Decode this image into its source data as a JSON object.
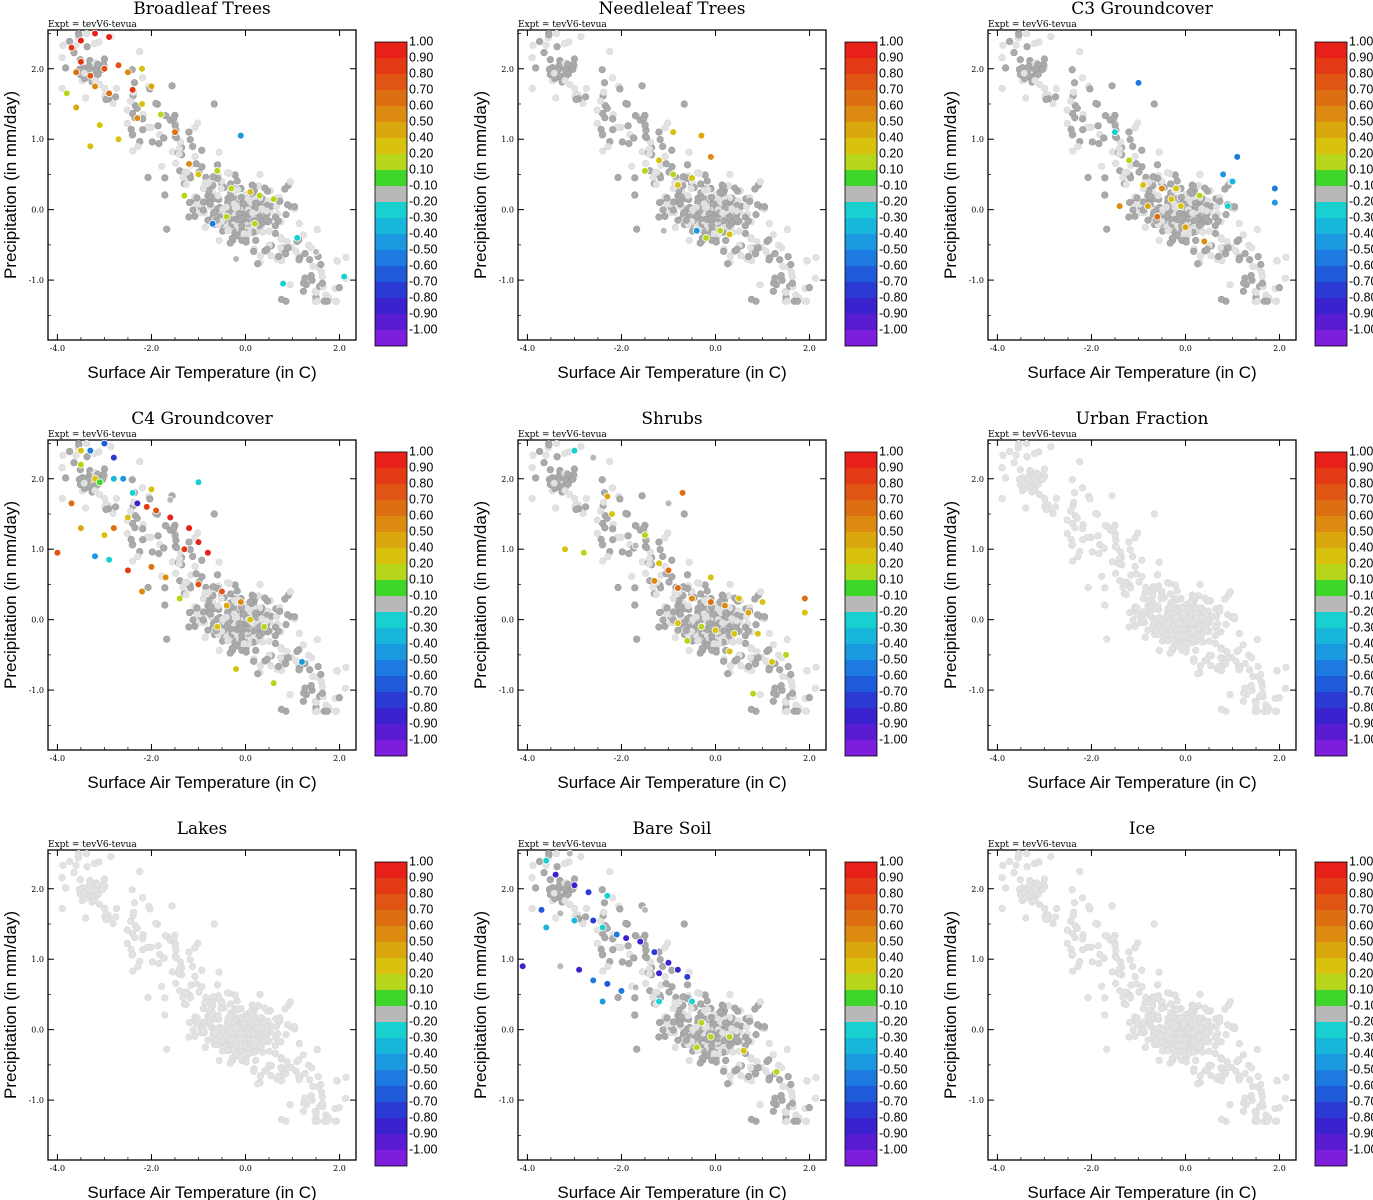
{
  "figure": {
    "xlabel": "Surface Air Temperature (in C)",
    "ylabel": "Precipitation (in mm/day)",
    "experiment": "Expt = tevV6-tevua",
    "xticks": [
      -4.0,
      -2.0,
      0.0,
      2.0
    ],
    "xtick_labels": [
      "-4.0",
      "-2.0",
      "0.0",
      "2.0"
    ],
    "yticks": [
      -1.0,
      0.0,
      1.0,
      2.0
    ],
    "ytick_labels": [
      "-1.0",
      "0.0",
      "1.0",
      "2.0"
    ],
    "xlim": [
      -4.2,
      2.35
    ],
    "ylim": [
      -1.85,
      2.55
    ]
  },
  "colorbar": {
    "labels": [
      "1.00",
      "0.90",
      "0.80",
      "0.70",
      "0.60",
      "0.50",
      "0.40",
      "0.20",
      "0.10",
      "-0.10",
      "-0.20",
      "-0.30",
      "-0.40",
      "-0.50",
      "-0.60",
      "-0.70",
      "-0.80",
      "-0.90",
      "-1.00"
    ],
    "colors": [
      "#e8201a",
      "#e33a15",
      "#e05514",
      "#de6e12",
      "#dd8a10",
      "#dba70e",
      "#d8c20d",
      "#b7d61b",
      "#3fd62a",
      "#b8b8b8",
      "#19d0d0",
      "#19b6dc",
      "#1a98e0",
      "#1c7ae0",
      "#1f5bd8",
      "#2a3ad3",
      "#3b22cf",
      "#5a1cd3",
      "#7c1edb"
    ]
  },
  "chart_data": [
    {
      "type": "scatter",
      "title": "Broadleaf Trees",
      "subtitle": "Expt = tevV6-tevua",
      "xlabel": "Surface Air Temperature (in C)",
      "ylabel": "Precipitation (in mm/day)",
      "xlim": [
        -4.2,
        2.35
      ],
      "ylim": [
        -1.85,
        2.55
      ],
      "colorbar_range": [
        -1.0,
        1.0
      ],
      "colored_points": [
        [
          -3.7,
          2.3,
          0.8
        ],
        [
          -3.5,
          2.4,
          0.9
        ],
        [
          -3.2,
          2.5,
          0.9
        ],
        [
          -2.9,
          2.45,
          0.9
        ],
        [
          -3.5,
          2.1,
          0.8
        ],
        [
          -3.6,
          1.95,
          0.6
        ],
        [
          -3.3,
          1.9,
          0.7
        ],
        [
          -3.0,
          2.0,
          0.7
        ],
        [
          -2.7,
          2.05,
          0.7
        ],
        [
          -2.5,
          1.95,
          0.5
        ],
        [
          -2.2,
          2.0,
          0.3
        ],
        [
          -3.2,
          1.75,
          0.5
        ],
        [
          -2.9,
          1.65,
          0.6
        ],
        [
          -2.4,
          1.7,
          0.8
        ],
        [
          -2.0,
          1.75,
          0.4
        ],
        [
          -2.2,
          1.5,
          0.3
        ],
        [
          -1.8,
          1.35,
          0.1
        ],
        [
          -3.8,
          1.65,
          0.1
        ],
        [
          -3.6,
          1.45,
          0.4
        ],
        [
          -3.1,
          1.2,
          0.2
        ],
        [
          -2.7,
          1.0,
          0.2
        ],
        [
          -3.3,
          0.9,
          0.2
        ],
        [
          -2.3,
          1.3,
          0.5
        ],
        [
          -1.5,
          1.1,
          0.6
        ],
        [
          -1.2,
          0.65,
          0.5
        ],
        [
          -1.0,
          0.5,
          0.3
        ],
        [
          -0.6,
          0.55,
          0.1
        ],
        [
          -0.3,
          0.3,
          0.1
        ],
        [
          0.1,
          0.25,
          0.2
        ],
        [
          0.3,
          0.2,
          0.1
        ],
        [
          0.6,
          0.15,
          0.1
        ],
        [
          -1.3,
          0.2,
          0.1
        ],
        [
          -0.4,
          -0.1,
          0.1
        ],
        [
          0.2,
          -0.2,
          0.1
        ],
        [
          -0.1,
          1.05,
          -0.5
        ],
        [
          -0.7,
          -0.2,
          -0.6
        ],
        [
          1.1,
          -0.4,
          -0.3
        ],
        [
          1.5,
          -0.6,
          -0.2
        ],
        [
          2.1,
          -0.95,
          -0.3
        ],
        [
          -0.2,
          -0.7,
          -0.2
        ],
        [
          0.8,
          -1.05,
          -0.3
        ]
      ],
      "grey_extent": {
        "x": [
          -4.2,
          2.3
        ],
        "y": [
          -1.3,
          2.5
        ]
      }
    },
    {
      "type": "scatter",
      "title": "Needleleaf Trees",
      "subtitle": "Expt = tevV6-tevua",
      "xlabel": "Surface Air Temperature (in C)",
      "ylabel": "Precipitation (in mm/day)",
      "xlim": [
        -4.2,
        2.35
      ],
      "ylim": [
        -1.85,
        2.55
      ],
      "colorbar_range": [
        -1.0,
        1.0
      ],
      "colored_points": [
        [
          -0.9,
          1.1,
          0.2
        ],
        [
          -0.3,
          1.05,
          0.4
        ],
        [
          -0.1,
          0.75,
          0.5
        ],
        [
          -1.5,
          0.55,
          0.1
        ],
        [
          -0.9,
          0.5,
          0.1
        ],
        [
          -0.5,
          0.45,
          0.2
        ],
        [
          -0.8,
          0.35,
          0.2
        ],
        [
          -1.2,
          0.7,
          0.3
        ],
        [
          0.1,
          -0.3,
          0.1
        ],
        [
          -0.2,
          -0.4,
          0.1
        ],
        [
          0.3,
          -0.35,
          0.2
        ],
        [
          -1.1,
          -0.3,
          -0.2
        ],
        [
          -0.4,
          -0.3,
          -0.5
        ]
      ],
      "grey_extent": {
        "x": [
          -4.2,
          2.3
        ],
        "y": [
          -1.3,
          2.5
        ]
      }
    },
    {
      "type": "scatter",
      "title": "C3 Groundcover",
      "subtitle": "Expt = tevV6-tevua",
      "xlabel": "Surface Air Temperature (in C)",
      "ylabel": "Precipitation (in mm/day)",
      "xlim": [
        -4.2,
        2.35
      ],
      "ylim": [
        -1.85,
        2.55
      ],
      "colorbar_range": [
        -1.0,
        1.0
      ],
      "colored_points": [
        [
          -1.0,
          1.8,
          -0.6
        ],
        [
          -1.5,
          1.1,
          -0.3
        ],
        [
          -1.2,
          0.7,
          0.1
        ],
        [
          -0.5,
          0.3,
          0.5
        ],
        [
          -0.8,
          0.05,
          0.4
        ],
        [
          -1.4,
          0.05,
          0.5
        ],
        [
          -0.3,
          0.15,
          0.3
        ],
        [
          -0.1,
          0.05,
          0.2
        ],
        [
          0.0,
          -0.25,
          0.4
        ],
        [
          0.3,
          0.2,
          0.1
        ],
        [
          -0.6,
          -0.1,
          0.6
        ],
        [
          0.4,
          -0.45,
          0.5
        ],
        [
          0.8,
          0.5,
          -0.5
        ],
        [
          1.1,
          0.75,
          -0.6
        ],
        [
          1.0,
          0.4,
          -0.4
        ],
        [
          0.9,
          0.05,
          -0.3
        ],
        [
          1.9,
          0.3,
          -0.6
        ],
        [
          1.9,
          0.1,
          -0.5
        ],
        [
          -0.9,
          0.35,
          0.3
        ],
        [
          -0.2,
          0.3,
          0.2
        ]
      ],
      "grey_extent": {
        "x": [
          -4.2,
          2.3
        ],
        "y": [
          -1.3,
          2.5
        ]
      }
    },
    {
      "type": "scatter",
      "title": "C4 Groundcover",
      "subtitle": "Expt = tevV6-tevua",
      "xlabel": "Surface Air Temperature (in C)",
      "ylabel": "Precipitation (in mm/day)",
      "xlim": [
        -4.2,
        2.35
      ],
      "ylim": [
        -1.85,
        2.55
      ],
      "colorbar_range": [
        -1.0,
        1.0
      ],
      "colored_points": [
        [
          -3.5,
          2.4,
          0.3
        ],
        [
          -3.3,
          2.4,
          -0.6
        ],
        [
          -3.0,
          2.5,
          -0.7
        ],
        [
          -2.8,
          2.3,
          -0.8
        ],
        [
          -3.5,
          2.2,
          0.1
        ],
        [
          -3.2,
          2.0,
          0.2
        ],
        [
          -2.8,
          2.0,
          -0.4
        ],
        [
          -2.6,
          2.0,
          -0.5
        ],
        [
          -2.4,
          1.8,
          -0.3
        ],
        [
          -2.0,
          1.85,
          0.2
        ],
        [
          -2.3,
          1.65,
          -0.9
        ],
        [
          -2.1,
          1.6,
          0.8
        ],
        [
          -1.9,
          1.55,
          0.7
        ],
        [
          -1.6,
          1.45,
          0.9
        ],
        [
          -1.2,
          1.3,
          0.9
        ],
        [
          -1.0,
          1.1,
          0.9
        ],
        [
          -0.8,
          0.95,
          0.9
        ],
        [
          -1.3,
          1.0,
          0.8
        ],
        [
          -2.5,
          1.45,
          0.3
        ],
        [
          -2.8,
          1.3,
          0.6
        ],
        [
          -3.0,
          1.2,
          0.2
        ],
        [
          -3.5,
          1.3,
          0.4
        ],
        [
          -3.7,
          1.65,
          0.6
        ],
        [
          -3.2,
          0.9,
          -0.5
        ],
        [
          -2.9,
          0.85,
          -0.3
        ],
        [
          -2.5,
          0.7,
          0.8
        ],
        [
          -2.0,
          0.75,
          0.6
        ],
        [
          -1.7,
          0.6,
          0.5
        ],
        [
          -2.2,
          0.4,
          0.5
        ],
        [
          -1.0,
          0.5,
          0.7
        ],
        [
          -0.5,
          0.4,
          0.7
        ],
        [
          -0.4,
          0.2,
          0.4
        ],
        [
          -0.1,
          0.25,
          0.5
        ],
        [
          0.1,
          0.0,
          0.3
        ],
        [
          0.4,
          -0.1,
          0.1
        ],
        [
          -0.6,
          -0.1,
          0.2
        ],
        [
          -1.4,
          0.3,
          0.1
        ],
        [
          -3.1,
          1.95,
          0.0
        ],
        [
          -0.2,
          -0.7,
          0.2
        ],
        [
          0.6,
          -0.9,
          0.1
        ],
        [
          1.2,
          -0.6,
          -0.5
        ],
        [
          -1.6,
          1.7,
          -0.2
        ],
        [
          -1.0,
          1.95,
          -0.3
        ],
        [
          -4.0,
          0.95,
          0.7
        ]
      ],
      "grey_extent": {
        "x": [
          -4.2,
          2.3
        ],
        "y": [
          -1.3,
          2.5
        ]
      }
    },
    {
      "type": "scatter",
      "title": "Shrubs",
      "subtitle": "Expt = tevV6-tevua",
      "xlabel": "Surface Air Temperature (in C)",
      "ylabel": "Precipitation (in mm/day)",
      "xlim": [
        -4.2,
        2.35
      ],
      "ylim": [
        -1.85,
        2.55
      ],
      "colorbar_range": [
        -1.0,
        1.0
      ],
      "colored_points": [
        [
          -3.0,
          2.4,
          -0.3
        ],
        [
          -2.6,
          2.3,
          -0.2
        ],
        [
          -2.3,
          1.75,
          0.4
        ],
        [
          -2.2,
          1.5,
          0.3
        ],
        [
          -3.2,
          1.0,
          0.2
        ],
        [
          -2.8,
          0.95,
          0.1
        ],
        [
          -1.5,
          1.2,
          0.1
        ],
        [
          -1.7,
          1.05,
          -0.2
        ],
        [
          -1.2,
          0.8,
          0.3
        ],
        [
          -1.0,
          0.7,
          0.6
        ],
        [
          -0.8,
          0.45,
          0.6
        ],
        [
          -1.3,
          0.55,
          0.5
        ],
        [
          -0.5,
          0.3,
          0.5
        ],
        [
          -0.1,
          0.25,
          0.6
        ],
        [
          0.2,
          0.2,
          0.5
        ],
        [
          0.5,
          0.3,
          0.3
        ],
        [
          0.7,
          0.1,
          0.4
        ],
        [
          -0.8,
          -0.05,
          0.2
        ],
        [
          -0.3,
          -0.1,
          0.1
        ],
        [
          0.0,
          -0.15,
          0.3
        ],
        [
          0.4,
          -0.2,
          0.2
        ],
        [
          1.0,
          0.25,
          0.3
        ],
        [
          0.9,
          -0.2,
          0.2
        ],
        [
          1.9,
          0.3,
          0.6
        ],
        [
          1.9,
          0.1,
          0.3
        ],
        [
          1.5,
          -0.5,
          0.1
        ],
        [
          1.2,
          -0.6,
          0.2
        ],
        [
          0.8,
          -1.05,
          0.1
        ],
        [
          -0.7,
          1.8,
          0.6
        ],
        [
          -1.0,
          1.65,
          -0.2
        ],
        [
          -0.1,
          0.6,
          0.3
        ],
        [
          -0.6,
          -0.3,
          0.1
        ],
        [
          0.3,
          -0.45,
          0.2
        ]
      ],
      "grey_extent": {
        "x": [
          -4.2,
          2.3
        ],
        "y": [
          -1.3,
          2.5
        ]
      }
    },
    {
      "type": "scatter",
      "title": "Urban Fraction",
      "subtitle": "Expt = tevV6-tevua",
      "xlabel": "Surface Air Temperature (in C)",
      "ylabel": "Precipitation (in mm/day)",
      "xlim": [
        -4.2,
        2.35
      ],
      "ylim": [
        -1.85,
        2.55
      ],
      "colorbar_range": [
        -1.0,
        1.0
      ],
      "colored_points": [],
      "grey_extent": {
        "x": [
          -4.2,
          2.3
        ],
        "y": [
          -1.3,
          2.5
        ]
      }
    },
    {
      "type": "scatter",
      "title": "Lakes",
      "subtitle": "Expt = tevV6-tevua",
      "xlabel": "Surface Air Temperature (in C)",
      "ylabel": "Precipitation (in mm/day)",
      "xlim": [
        -4.2,
        2.35
      ],
      "ylim": [
        -1.85,
        2.55
      ],
      "colorbar_range": [
        -1.0,
        1.0
      ],
      "colored_points": [],
      "grey_extent": {
        "x": [
          -4.2,
          2.3
        ],
        "y": [
          -1.3,
          2.5
        ]
      }
    },
    {
      "type": "scatter",
      "title": "Bare Soil",
      "subtitle": "Expt = tevV6-tevua",
      "xlabel": "Surface Air Temperature (in C)",
      "ylabel": "Precipitation (in mm/day)",
      "xlim": [
        -4.2,
        2.35
      ],
      "ylim": [
        -1.85,
        2.55
      ],
      "colorbar_range": [
        -1.0,
        1.0
      ],
      "colored_points": [
        [
          -3.6,
          2.4,
          -0.3
        ],
        [
          -3.1,
          2.5,
          -0.2
        ],
        [
          -3.4,
          2.2,
          -0.9
        ],
        [
          -3.0,
          2.05,
          -0.9
        ],
        [
          -2.7,
          1.95,
          -0.8
        ],
        [
          -2.3,
          1.9,
          -0.3
        ],
        [
          -3.7,
          1.7,
          -0.7
        ],
        [
          -3.3,
          1.65,
          -0.2
        ],
        [
          -3.0,
          1.55,
          -0.4
        ],
        [
          -2.6,
          1.55,
          -0.8
        ],
        [
          -2.4,
          1.45,
          -0.3
        ],
        [
          -2.1,
          1.35,
          -0.6
        ],
        [
          -1.9,
          1.3,
          -0.9
        ],
        [
          -1.6,
          1.25,
          -0.9
        ],
        [
          -1.3,
          1.1,
          -0.8
        ],
        [
          -1.0,
          0.95,
          -0.9
        ],
        [
          -0.8,
          0.85,
          -0.9
        ],
        [
          -1.2,
          0.8,
          -0.9
        ],
        [
          -0.6,
          0.75,
          -0.8
        ],
        [
          -3.6,
          1.45,
          -0.4
        ],
        [
          -3.3,
          0.9,
          -0.2
        ],
        [
          -2.9,
          0.85,
          -0.9
        ],
        [
          -2.6,
          0.7,
          -0.6
        ],
        [
          -2.3,
          0.65,
          -0.7
        ],
        [
          -2.0,
          0.55,
          -0.6
        ],
        [
          -1.7,
          0.6,
          -0.2
        ],
        [
          -2.4,
          0.4,
          -0.5
        ],
        [
          -1.2,
          0.4,
          -0.3
        ],
        [
          -0.5,
          0.4,
          -0.3
        ],
        [
          -0.3,
          0.1,
          0.1
        ],
        [
          -0.1,
          -0.1,
          0.1
        ],
        [
          0.3,
          -0.1,
          0.1
        ],
        [
          -0.4,
          -0.25,
          0.1
        ],
        [
          0.6,
          -0.3,
          0.2
        ],
        [
          1.3,
          -0.6,
          0.1
        ],
        [
          -4.1,
          0.9,
          -0.9
        ],
        [
          -1.5,
          1.7,
          -0.2
        ]
      ],
      "grey_extent": {
        "x": [
          -4.2,
          2.3
        ],
        "y": [
          -1.3,
          2.5
        ]
      }
    },
    {
      "type": "scatter",
      "title": "Ice",
      "subtitle": "Expt = tevV6-tevua",
      "xlabel": "Surface Air Temperature (in C)",
      "ylabel": "Precipitation (in mm/day)",
      "xlim": [
        -4.2,
        2.35
      ],
      "ylim": [
        -1.85,
        2.55
      ],
      "colorbar_range": [
        -1.0,
        1.0
      ],
      "colored_points": [],
      "grey_extent": {
        "x": [
          -4.2,
          2.3
        ],
        "y": [
          -1.3,
          2.5
        ]
      }
    }
  ]
}
